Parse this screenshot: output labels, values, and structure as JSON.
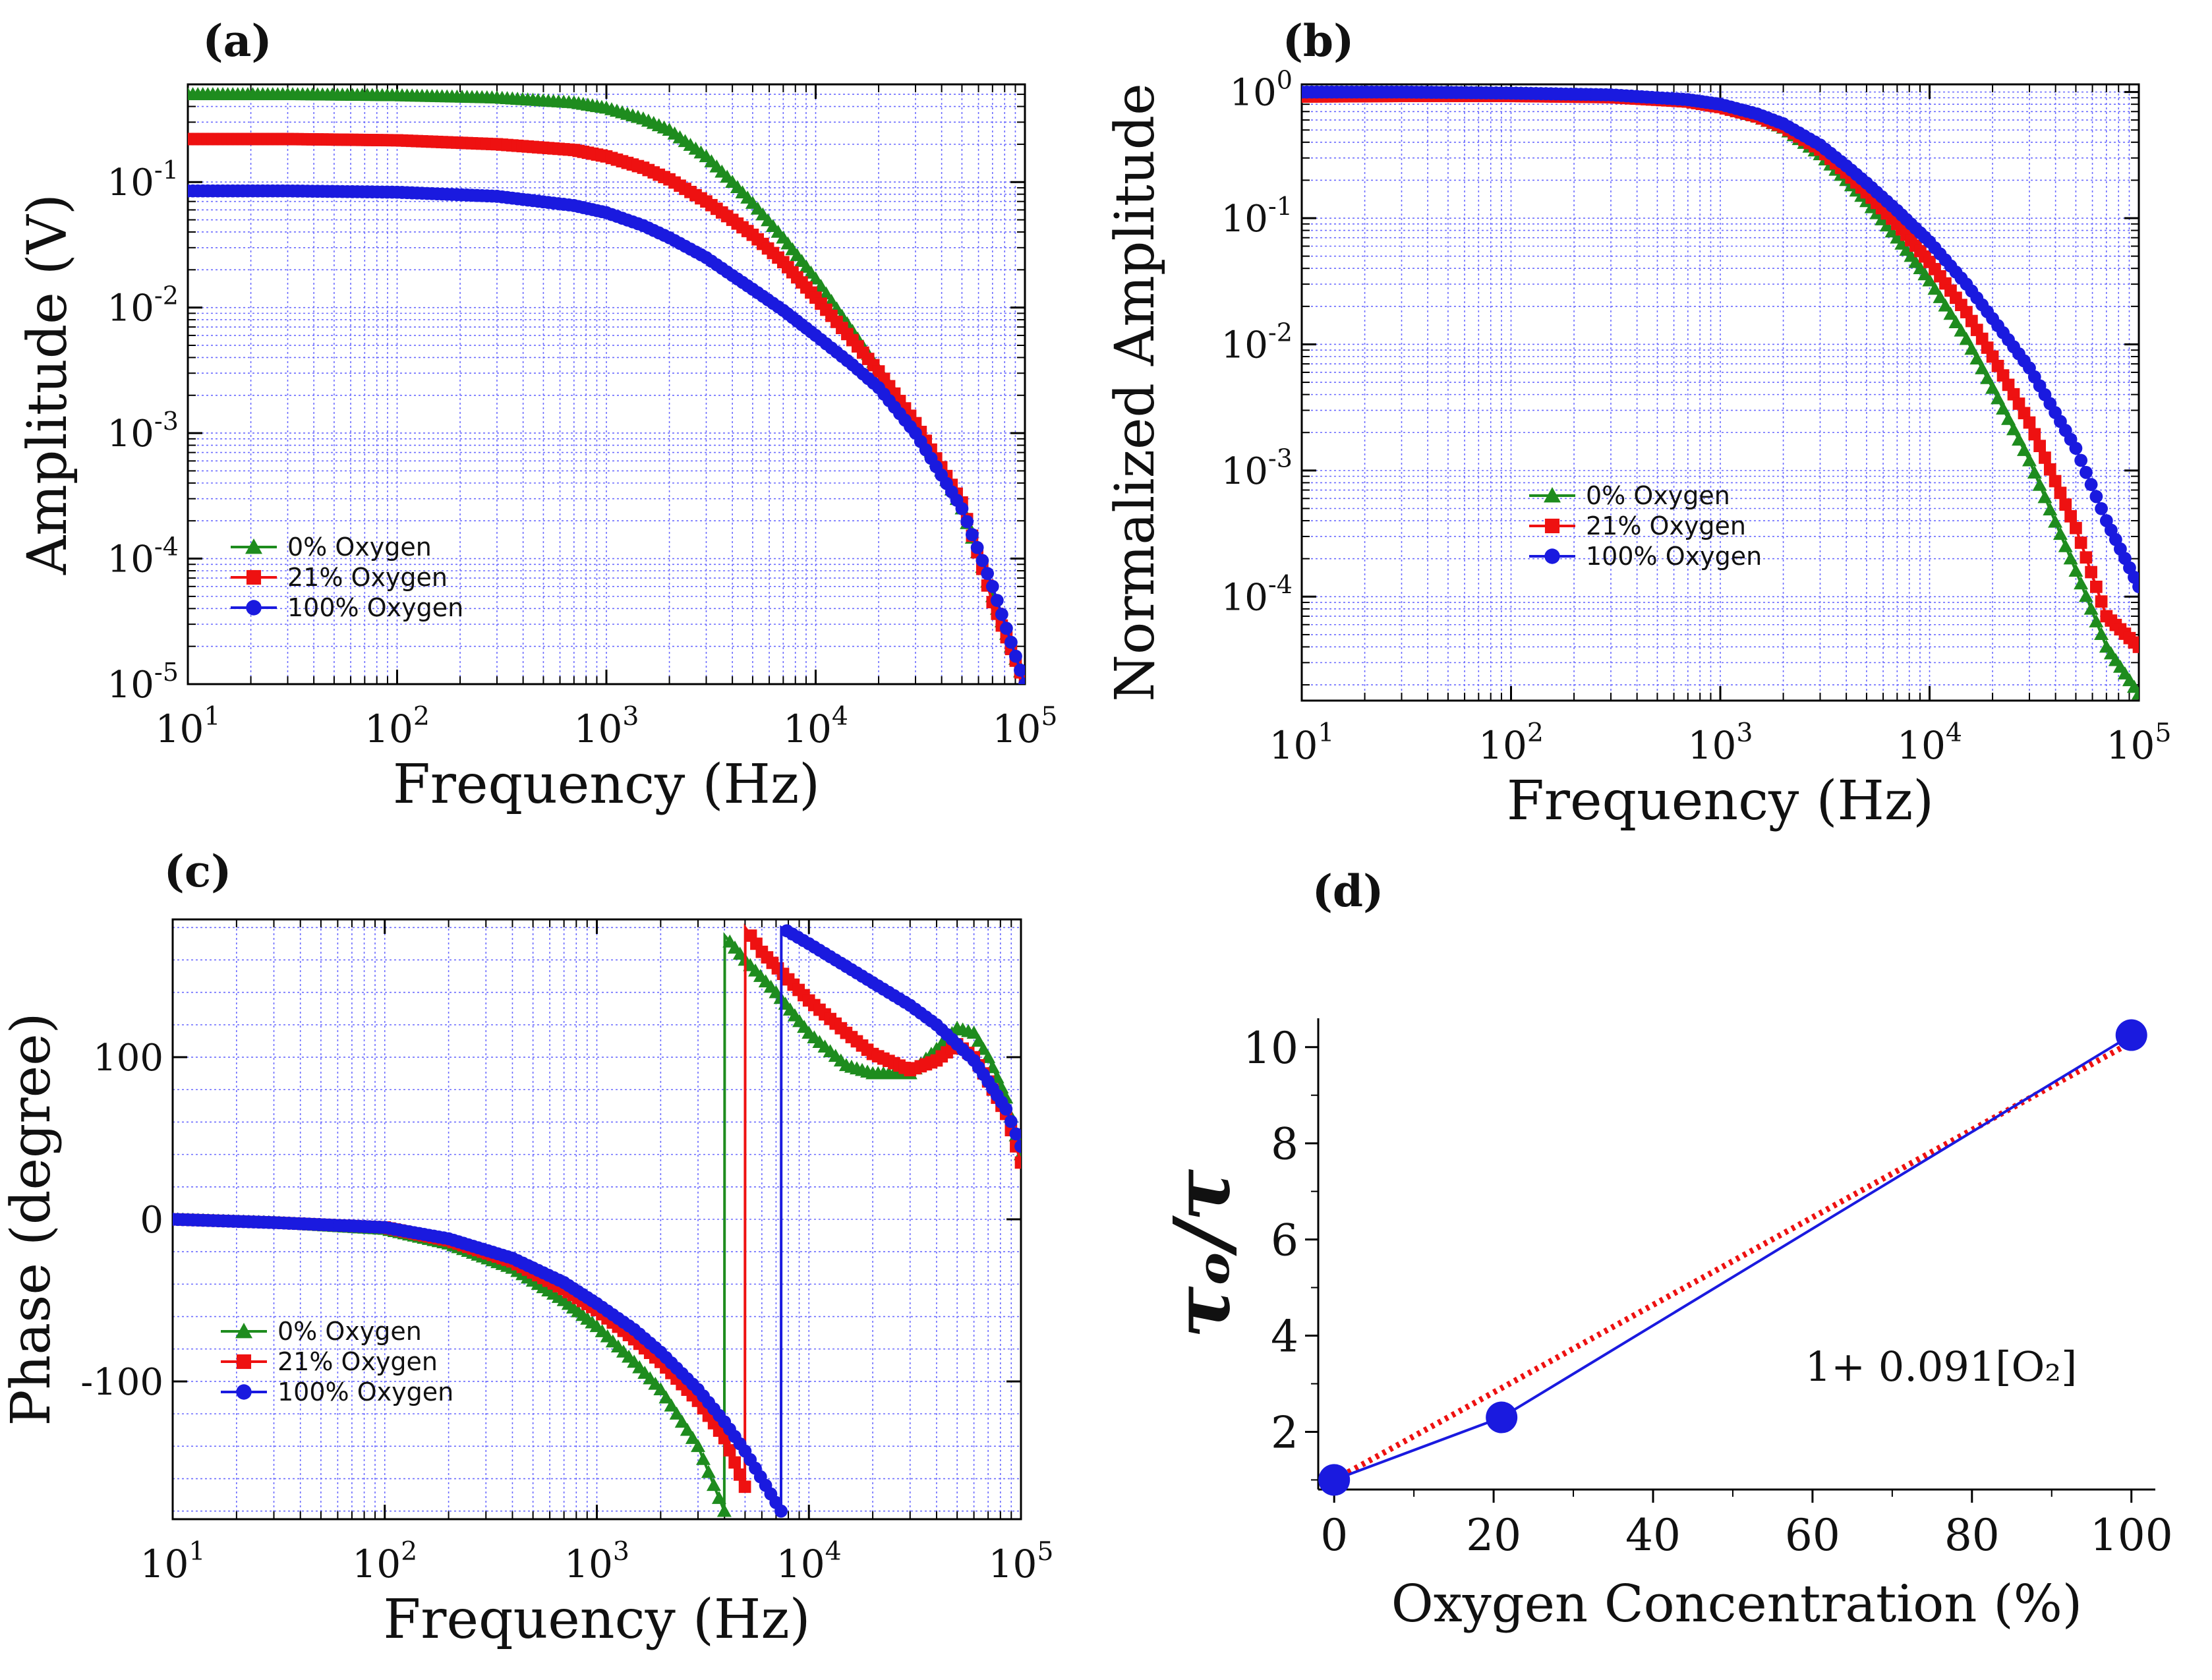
{
  "panels": {
    "a": {
      "label": "(a)"
    },
    "b": {
      "label": "(b)"
    },
    "c": {
      "label": "(c)"
    },
    "d": {
      "label": "(d)"
    }
  },
  "colors": {
    "green": "#1e8c1e",
    "red": "#ee1111",
    "blue": "#1a1adf",
    "fit": "#ee1111",
    "grid": "#6b6bff"
  },
  "markers": {
    "0%": "triangle",
    "21%": "square",
    "100%": "circle"
  },
  "chart_data": [
    {
      "type": "line",
      "panel": "a",
      "xlabel": "Frequency (Hz)",
      "ylabel": "Amplitude (V)",
      "xscale": "log",
      "yscale": "log",
      "xlim": [
        10,
        100000
      ],
      "ylim": [
        1e-05,
        0.6
      ],
      "xticks": [
        10,
        100,
        1000,
        10000,
        100000
      ],
      "xtick_labels": [
        [
          "10",
          "1"
        ],
        [
          "10",
          "2"
        ],
        [
          "10",
          "3"
        ],
        [
          "10",
          "4"
        ],
        [
          "10",
          "5"
        ]
      ],
      "yticks": [
        1e-05,
        0.0001,
        0.001,
        0.01,
        0.1
      ],
      "ytick_labels": [
        [
          "10",
          "-5"
        ],
        [
          "10",
          "-4"
        ],
        [
          "10",
          "-3"
        ],
        [
          "10",
          "-2"
        ],
        [
          "10",
          "-1"
        ]
      ],
      "grid": true,
      "legend_position": "bottom-left",
      "series": [
        {
          "name": "0%     Oxygen",
          "color": "#1e8c1e",
          "marker": "triangle",
          "x": [
            10,
            30,
            100,
            300,
            700,
            1000,
            1500,
            2000,
            3000,
            4000,
            5000,
            7000,
            10000,
            15000,
            20000,
            30000,
            50000,
            70000,
            100000
          ],
          "y": [
            0.5,
            0.5,
            0.49,
            0.47,
            0.43,
            0.39,
            0.32,
            0.26,
            0.16,
            0.1,
            0.068,
            0.036,
            0.017,
            0.0065,
            0.0032,
            0.0012,
            0.00025,
            5e-05,
            1e-05
          ]
        },
        {
          "name": "21%   Oxygen",
          "color": "#ee1111",
          "marker": "square",
          "x": [
            10,
            30,
            100,
            300,
            700,
            1000,
            1500,
            2000,
            3000,
            4000,
            5000,
            7000,
            10000,
            15000,
            20000,
            30000,
            50000,
            70000,
            100000
          ],
          "y": [
            0.22,
            0.22,
            0.215,
            0.2,
            0.18,
            0.16,
            0.13,
            0.105,
            0.07,
            0.05,
            0.038,
            0.023,
            0.012,
            0.0055,
            0.0031,
            0.0012,
            0.00028,
            4.5e-05,
            1e-05
          ]
        },
        {
          "name": "100% Oxygen",
          "color": "#1a1adf",
          "marker": "circle",
          "x": [
            10,
            30,
            100,
            300,
            700,
            1000,
            1500,
            2000,
            3000,
            4000,
            5000,
            7000,
            10000,
            15000,
            20000,
            30000,
            50000,
            70000,
            100000
          ],
          "y": [
            0.085,
            0.085,
            0.083,
            0.077,
            0.065,
            0.057,
            0.045,
            0.036,
            0.025,
            0.018,
            0.014,
            0.0095,
            0.006,
            0.0035,
            0.0023,
            0.001,
            0.00025,
            6e-05,
            1e-05
          ]
        }
      ]
    },
    {
      "type": "line",
      "panel": "b",
      "xlabel": "Frequency (Hz)",
      "ylabel": "Normalized Amplitude",
      "xscale": "log",
      "yscale": "log",
      "xlim": [
        10,
        100000
      ],
      "ylim": [
        1.5e-05,
        1.15
      ],
      "xticks": [
        10,
        100,
        1000,
        10000,
        100000
      ],
      "xtick_labels": [
        [
          "10",
          "1"
        ],
        [
          "10",
          "2"
        ],
        [
          "10",
          "3"
        ],
        [
          "10",
          "4"
        ],
        [
          "10",
          "5"
        ]
      ],
      "yticks": [
        0.0001,
        0.001,
        0.01,
        0.1,
        1
      ],
      "ytick_labels": [
        [
          "10",
          "-4"
        ],
        [
          "10",
          "-3"
        ],
        [
          "10",
          "-2"
        ],
        [
          "10",
          "-1"
        ],
        [
          "10",
          "0"
        ]
      ],
      "grid": true,
      "legend_position": "middle",
      "series": [
        {
          "name": "0%     Oxygen",
          "color": "#1e8c1e",
          "marker": "triangle",
          "x": [
            10,
            30,
            100,
            300,
            700,
            1000,
            1500,
            2000,
            3000,
            4000,
            5000,
            7000,
            10000,
            15000,
            20000,
            30000,
            50000,
            70000,
            100000
          ],
          "y": [
            1.0,
            1.0,
            0.98,
            0.94,
            0.86,
            0.78,
            0.64,
            0.52,
            0.32,
            0.2,
            0.136,
            0.07,
            0.032,
            0.011,
            0.0045,
            0.0012,
            0.00016,
            4e-05,
            1.7e-05
          ]
        },
        {
          "name": "21%   Oxygen",
          "color": "#ee1111",
          "marker": "square",
          "x": [
            10,
            30,
            100,
            300,
            700,
            1000,
            1500,
            2000,
            3000,
            4000,
            5000,
            7000,
            10000,
            15000,
            20000,
            30000,
            50000,
            70000,
            100000
          ],
          "y": [
            0.92,
            0.93,
            0.93,
            0.91,
            0.84,
            0.76,
            0.64,
            0.53,
            0.35,
            0.23,
            0.16,
            0.09,
            0.045,
            0.018,
            0.008,
            0.0024,
            0.00035,
            7e-05,
            4e-05
          ]
        },
        {
          "name": "100% Oxygen",
          "color": "#1a1adf",
          "marker": "circle",
          "x": [
            10,
            30,
            100,
            300,
            700,
            1000,
            1500,
            2000,
            3000,
            4000,
            5000,
            7000,
            10000,
            15000,
            20000,
            30000,
            50000,
            70000,
            100000
          ],
          "y": [
            1.0,
            1.0,
            0.98,
            0.95,
            0.87,
            0.8,
            0.67,
            0.56,
            0.38,
            0.26,
            0.19,
            0.115,
            0.065,
            0.03,
            0.016,
            0.0065,
            0.0015,
            0.0004,
            0.00012
          ]
        }
      ]
    },
    {
      "type": "line",
      "panel": "c",
      "xlabel": "Frequency (Hz)",
      "ylabel": "Phase (degree)",
      "xscale": "log",
      "yscale": "linear",
      "xlim": [
        10,
        100000
      ],
      "ylim": [
        -185,
        185
      ],
      "xticks": [
        10,
        100,
        1000,
        10000,
        100000
      ],
      "xtick_labels": [
        [
          "10",
          "1"
        ],
        [
          "10",
          "2"
        ],
        [
          "10",
          "3"
        ],
        [
          "10",
          "4"
        ],
        [
          "10",
          "5"
        ]
      ],
      "yticks": [
        -100,
        0,
        100
      ],
      "ytick_labels": [
        "-100",
        "0",
        "100"
      ],
      "grid": true,
      "legend_position": "bottom-left",
      "series": [
        {
          "name": "0%     Oxygen",
          "color": "#1e8c1e",
          "marker": "triangle",
          "x": [
            10,
            30,
            100,
            200,
            400,
            700,
            1000,
            1500,
            2000,
            3000,
            3990,
            4010,
            5000,
            7000,
            10000,
            15000,
            20000,
            30000,
            40000,
            50000,
            60000,
            70000,
            85000,
            100000
          ],
          "y": [
            0,
            -2,
            -6,
            -15,
            -30,
            -50,
            -66,
            -88,
            -105,
            -140,
            -180,
            175,
            160,
            140,
            115,
            95,
            90,
            90,
            105,
            118,
            115,
            100,
            75,
            40
          ]
        },
        {
          "name": "21%   Oxygen",
          "color": "#ee1111",
          "marker": "square",
          "x": [
            10,
            30,
            100,
            200,
            400,
            700,
            1000,
            1500,
            2000,
            3000,
            4000,
            4990,
            5010,
            6000,
            8000,
            10000,
            15000,
            20000,
            30000,
            40000,
            50000,
            60000,
            70000,
            85000,
            100000
          ],
          "y": [
            0,
            -2,
            -5,
            -13,
            -26,
            -43,
            -56,
            -74,
            -88,
            -112,
            -135,
            -165,
            180,
            165,
            148,
            135,
            115,
            102,
            92,
            98,
            108,
            100,
            85,
            65,
            35
          ]
        },
        {
          "name": "100% Oxygen",
          "color": "#1a1adf",
          "marker": "circle",
          "x": [
            10,
            30,
            100,
            200,
            400,
            700,
            1000,
            1500,
            2000,
            3000,
            4000,
            5000,
            7390,
            7410,
            10000,
            15000,
            20000,
            30000,
            40000,
            50000,
            60000,
            70000,
            85000,
            100000
          ],
          "y": [
            0,
            -2,
            -5,
            -12,
            -24,
            -39,
            -52,
            -68,
            -82,
            -105,
            -125,
            -143,
            -180,
            180,
            170,
            156,
            146,
            132,
            120,
            108,
            98,
            85,
            68,
            45
          ]
        }
      ]
    },
    {
      "type": "scatter",
      "panel": "d",
      "xlabel": "Oxygen Concentration (%)",
      "ylabel": "τₒ/τ",
      "xlim": [
        -2,
        103
      ],
      "ylim": [
        0.8,
        10.6
      ],
      "xticks": [
        0,
        20,
        40,
        60,
        80,
        100
      ],
      "yticks": [
        2,
        4,
        6,
        8,
        10
      ],
      "tick_labels_x": [
        "0",
        "20",
        "40",
        "60",
        "80",
        "100"
      ],
      "tick_labels_y": [
        "2",
        "4",
        "6",
        "8",
        "10"
      ],
      "annotation": "1+ 0.091[O₂]",
      "grid": false,
      "series": [
        {
          "color": "#1a1adf",
          "marker": "circle",
          "x": [
            0,
            21,
            100
          ],
          "y": [
            1.0,
            2.3,
            10.25
          ]
        }
      ],
      "fit": {
        "color": "#ee1111",
        "style": "dotted",
        "x": [
          0,
          100
        ],
        "y": [
          1.0,
          10.1
        ]
      }
    }
  ]
}
